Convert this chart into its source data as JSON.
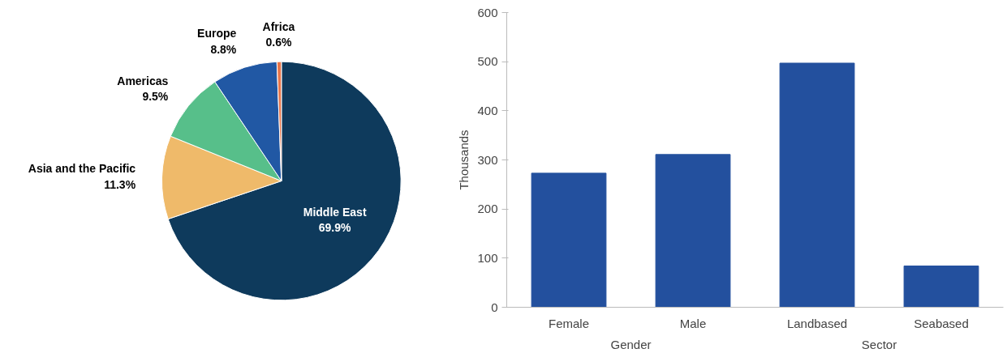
{
  "chart_data": [
    {
      "type": "pie",
      "categories": [
        "Middle East",
        "Asia and the Pacific",
        "Americas",
        "Europe",
        "Africa"
      ],
      "values": [
        69.9,
        11.3,
        9.5,
        8.8,
        0.6
      ],
      "colors": [
        "#0e3a5c",
        "#efba6a",
        "#57bf8a",
        "#2158a4",
        "#e8764b"
      ],
      "value_labels": [
        "69.9%",
        "11.3%",
        "9.5%",
        "8.8%",
        "0.6%"
      ]
    },
    {
      "type": "bar",
      "categories": [
        "Female",
        "Male",
        "Landbased",
        "Seabased"
      ],
      "values": [
        273,
        311,
        497,
        84
      ],
      "color": "#23509e",
      "ylabel": "Thousands",
      "ylim": [
        0,
        600
      ],
      "yticks": [
        0,
        100,
        200,
        300,
        400,
        500,
        600
      ],
      "grid": false,
      "annotations": [
        "Gender",
        "Sector"
      ]
    }
  ]
}
